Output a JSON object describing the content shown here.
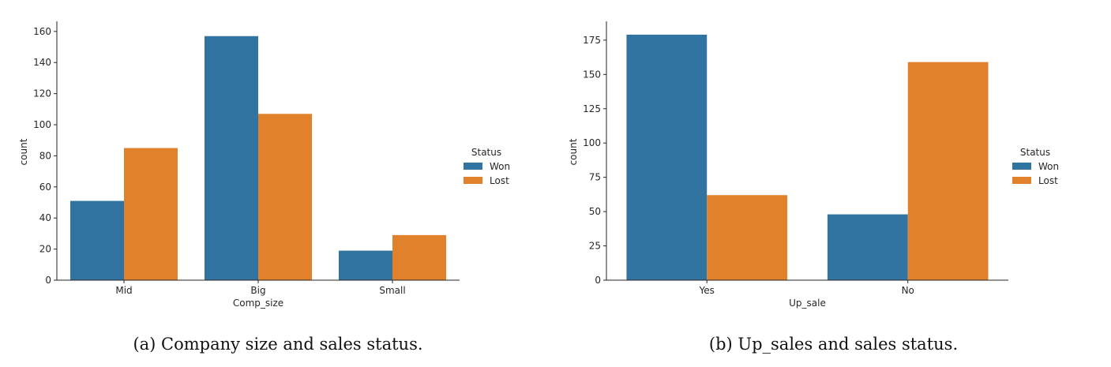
{
  "colors": {
    "won": "#3274a1",
    "lost": "#e1812c",
    "axis": "#262626"
  },
  "chart_data": [
    {
      "type": "bar",
      "categories": [
        "Mid",
        "Big",
        "Small"
      ],
      "series": [
        {
          "name": "Won",
          "values": [
            51,
            157,
            19
          ]
        },
        {
          "name": "Lost",
          "values": [
            85,
            107,
            29
          ]
        }
      ],
      "xlabel": "Comp_size",
      "ylabel": "count",
      "ylim": [
        0,
        165
      ],
      "yticks": [
        0,
        20,
        40,
        60,
        80,
        100,
        120,
        140,
        160
      ],
      "legend_title": "Status",
      "legend_position": "right",
      "grid": false,
      "caption": "(a)  Company size and sales status."
    },
    {
      "type": "bar",
      "categories": [
        "Yes",
        "No"
      ],
      "series": [
        {
          "name": "Won",
          "values": [
            179,
            48
          ]
        },
        {
          "name": "Lost",
          "values": [
            62,
            159
          ]
        }
      ],
      "xlabel": "Up_sale",
      "ylabel": "count",
      "ylim": [
        0,
        187
      ],
      "yticks": [
        0,
        25,
        50,
        75,
        100,
        125,
        150,
        175
      ],
      "legend_title": "Status",
      "legend_position": "right",
      "grid": false,
      "caption": "(b)  Up_sales and sales status."
    }
  ]
}
